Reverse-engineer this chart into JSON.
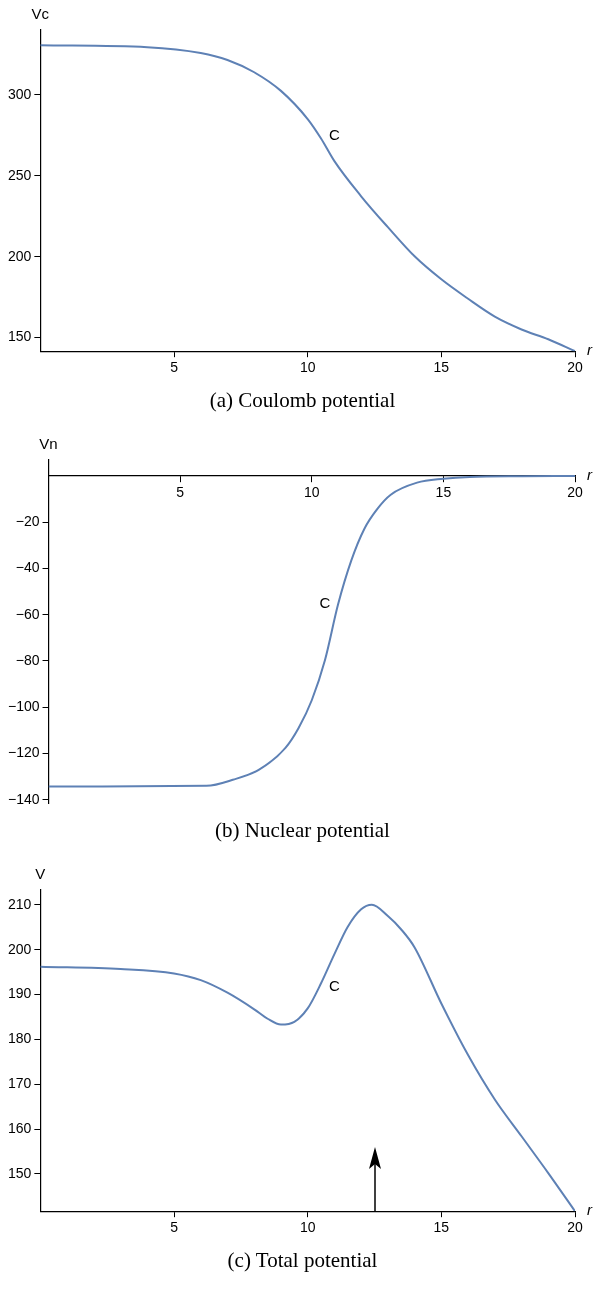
{
  "chart_data": [
    {
      "type": "line",
      "title": "(a) Coulomb potential",
      "xlabel": "r",
      "ylabel": "Vc",
      "xlim": [
        0,
        20
      ],
      "xticks": [
        5,
        10,
        15,
        20
      ],
      "ylim": [
        141.6,
        340
      ],
      "yticks": [
        150,
        200,
        250,
        300
      ],
      "grid": false,
      "legend": false,
      "marker": "none",
      "line_style": "solid",
      "annotations": [
        "C"
      ],
      "series": [
        {
          "color": "#5e81b5",
          "x": [
            0,
            4,
            6,
            7,
            8,
            9,
            10,
            10.5,
            11,
            12,
            13,
            14,
            15,
            16,
            17,
            18,
            19,
            20
          ],
          "values": [
            330.6,
            329.4,
            325.8,
            321.5,
            313.9,
            302.4,
            285,
            273,
            259,
            237.3,
            218.2,
            200.2,
            186,
            174,
            163,
            155,
            149,
            141.6
          ]
        }
      ]
    },
    {
      "type": "line",
      "title": "(b) Nuclear potential",
      "xlabel": "r",
      "ylabel": "Vn",
      "xlim": [
        0,
        20
      ],
      "xticks": [
        5,
        10,
        15,
        20
      ],
      "ylim": [
        -141.7,
        6.9
      ],
      "yticks": [
        -20,
        -40,
        -60,
        -80,
        -100,
        -120,
        -140
      ],
      "grid": false,
      "legend": false,
      "marker": "none",
      "line_style": "solid",
      "annotations": [
        "C"
      ],
      "series": [
        {
          "color": "#5e81b5",
          "x": [
            0,
            6,
            7,
            8,
            9,
            9.5,
            10,
            10.5,
            11,
            11.5,
            12,
            12.5,
            13,
            14,
            15,
            16,
            18,
            20
          ],
          "values": [
            -134.3,
            -134,
            -131.4,
            -127,
            -117.6,
            -109,
            -97,
            -79.7,
            -55.5,
            -36.6,
            -22.8,
            -14.1,
            -8.1,
            -2.9,
            -1.2,
            -0.4,
            -0.1,
            0
          ]
        }
      ]
    },
    {
      "type": "line",
      "title": "(c) Total potential",
      "xlabel": "r",
      "ylabel": "V",
      "xlim": [
        0,
        20
      ],
      "xticks": [
        5,
        10,
        15,
        20
      ],
      "ylim": [
        141.7,
        213.3
      ],
      "yticks": [
        150,
        160,
        170,
        180,
        190,
        200,
        210
      ],
      "grid": false,
      "legend": false,
      "marker": "none",
      "line_style": "solid",
      "annotations": [
        "C"
      ],
      "ref_lines": [
        {
          "axis": "x",
          "value": 12.5,
          "color": "#000000"
        }
      ],
      "series": [
        {
          "color": "#5e81b5",
          "x": [
            0,
            3,
            5,
            6,
            7,
            8,
            8.5,
            9,
            9.5,
            10,
            10.5,
            11,
            11.5,
            12,
            12.4,
            13,
            13.5,
            14,
            15,
            16,
            17,
            18,
            19,
            20
          ],
          "values": [
            196.2,
            195.7,
            194.7,
            193.2,
            190.4,
            186.7,
            184.6,
            183.3,
            183.9,
            186.9,
            192.5,
            199,
            205.1,
            209,
            210,
            207.5,
            204.5,
            200.5,
            188,
            176.5,
            166.6,
            158.4,
            150.2,
            141.7
          ]
        }
      ]
    }
  ]
}
